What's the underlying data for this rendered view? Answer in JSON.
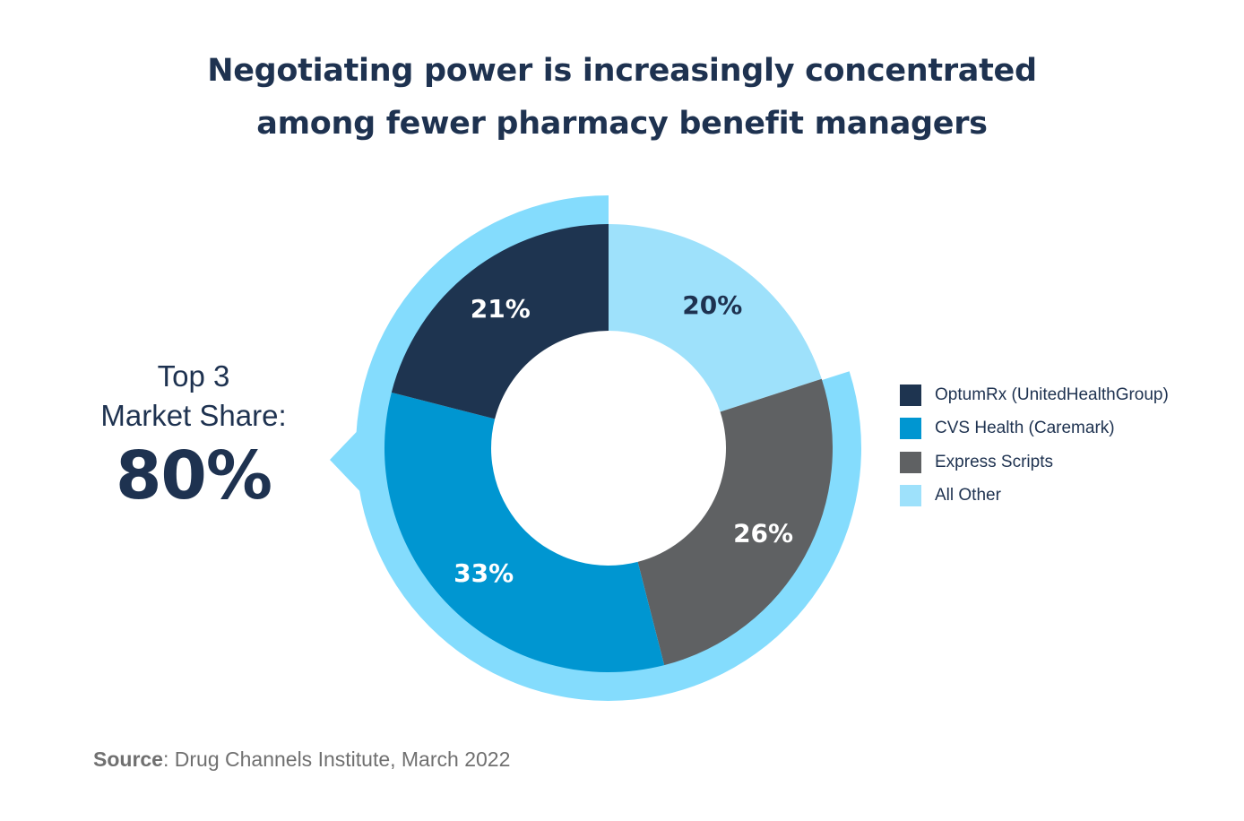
{
  "title": {
    "line1": "Negotiating power is increasingly concentrated",
    "line2": "among fewer pharmacy benefit managers"
  },
  "callout": {
    "line1": "Top 3",
    "line2": "Market Share:",
    "value": "80%"
  },
  "source": {
    "label": "Source",
    "text": ": Drug Channels Institute, March 2022"
  },
  "colors": {
    "highlight_ring": "#84dcfd",
    "label_light": "#ffffff",
    "label_dark": "#1e3250"
  },
  "chart_data": {
    "type": "pie",
    "style": "donut",
    "start_angle_deg": 0,
    "direction": "clockwise",
    "highlight_ring": "Top 3 Market Share",
    "slices": [
      {
        "name": "All Other",
        "value": 20,
        "label": "20%",
        "color": "#9ee1fb",
        "label_tone": "dark"
      },
      {
        "name": "Express Scripts",
        "value": 26,
        "label": "26%",
        "color": "#5f6163",
        "label_tone": "light"
      },
      {
        "name": "CVS Health (Caremark)",
        "value": 33,
        "label": "33%",
        "color": "#0096d1",
        "label_tone": "light"
      },
      {
        "name": "OptumRx (UnitedHealthGroup)",
        "value": 21,
        "label": "21%",
        "color": "#1e3450",
        "label_tone": "light"
      }
    ],
    "legend": [
      {
        "label": "OptumRx (UnitedHealthGroup)",
        "color": "#1e3450"
      },
      {
        "label": "CVS Health (Caremark)",
        "color": "#0096d1"
      },
      {
        "label": "Express Scripts",
        "color": "#5f6163"
      },
      {
        "label": "All Other",
        "color": "#9ee1fb"
      }
    ],
    "legend_position": "right"
  }
}
